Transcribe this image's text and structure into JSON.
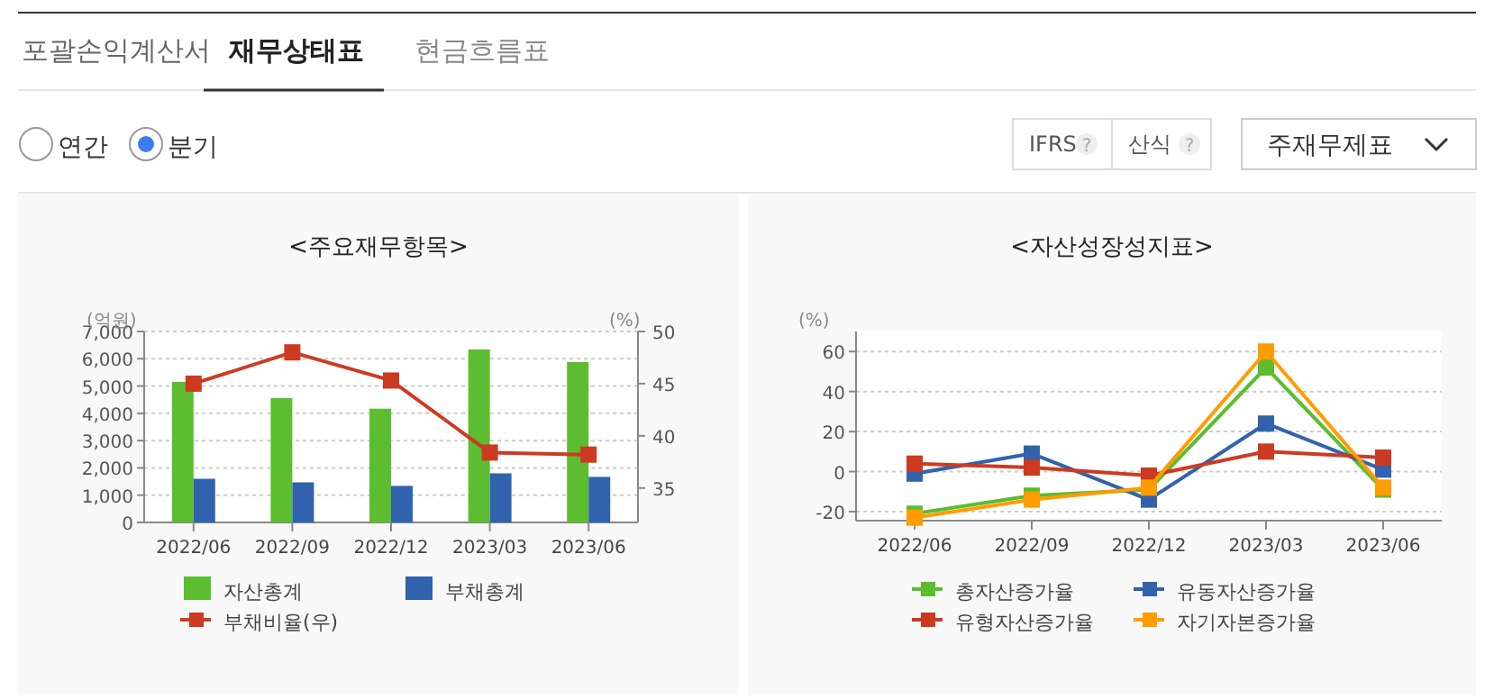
{
  "chart_data": [
    {
      "type": "other",
      "annotations": [
        "포괄손익계산서",
        "재무상태표",
        "현금흐름표",
        "연간",
        "분기",
        "IFRS",
        "?",
        "산식",
        "?",
        "주재무제표"
      ]
    },
    {
      "type": "bar",
      "title": "<주요재무항목>",
      "ylabel": "(억원)",
      "y2label": "(%)",
      "categories": [
        "2022/06",
        "2022/09",
        "2022/12",
        "2023/03",
        "2023/06"
      ],
      "series": [
        {
          "name": "자산총계",
          "color": "#5bbd2f",
          "values": [
            5150,
            4560,
            4170,
            6340,
            5880
          ]
        },
        {
          "name": "부채총계",
          "color": "#3162ae",
          "values": [
            1600,
            1470,
            1340,
            1800,
            1670
          ]
        },
        {
          "name": "부채비율(우)",
          "type": "line",
          "axis": "y2",
          "color": "#cd3a22",
          "values": [
            45.0,
            48.0,
            45.3,
            38.4,
            38.2
          ]
        }
      ],
      "ylim": [
        0,
        7000
      ],
      "yticks": [
        {
          "value": 0,
          "label": "0"
        },
        {
          "value": 1000,
          "label": "1,000"
        },
        {
          "value": 2000,
          "label": "2,000"
        },
        {
          "value": 3000,
          "label": "3,000"
        },
        {
          "value": 4000,
          "label": "4,000"
        },
        {
          "value": 5000,
          "label": "5,000"
        },
        {
          "value": 6000,
          "label": "6,000"
        },
        {
          "value": 7000,
          "label": "7,000"
        }
      ],
      "y2lim": [
        31.7,
        50
      ],
      "y2ticks": [
        35,
        40,
        45,
        50
      ],
      "grid": "y",
      "marker": "square",
      "legend": "bottom"
    },
    {
      "type": "line",
      "title": "<자산성장성지표>",
      "ylabel": "(%)",
      "categories": [
        "2022/06",
        "2022/09",
        "2022/12",
        "2023/03",
        "2023/06"
      ],
      "series": [
        {
          "name": "총자산증가율",
          "color": "#5bbd2f",
          "values": [
            -21,
            -12,
            -9,
            52,
            -9
          ]
        },
        {
          "name": "유동자산증가율",
          "color": "#3162ae",
          "values": [
            -1,
            9,
            -14,
            24,
            1
          ]
        },
        {
          "name": "유형자산증가율",
          "color": "#cd3a22",
          "values": [
            4,
            2,
            -2,
            10,
            7
          ]
        },
        {
          "name": "자기자본증가율",
          "color": "#ff9c00",
          "values": [
            -23,
            -14,
            -8,
            60,
            -8
          ]
        }
      ],
      "ylim": [
        -24.5,
        70
      ],
      "yticks": [
        -20,
        0,
        20,
        40,
        60
      ],
      "grid": "y",
      "marker": "square",
      "legend": "bottom"
    }
  ]
}
